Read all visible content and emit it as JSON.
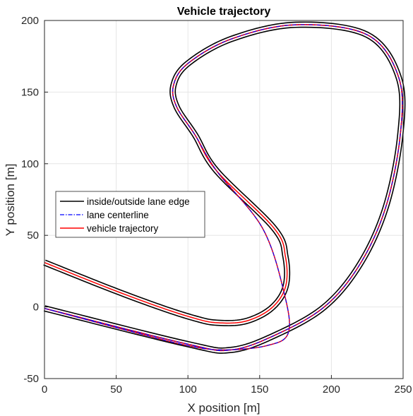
{
  "chart_data": {
    "type": "line",
    "title": "Vehicle trajectory",
    "xlabel": "X position [m]",
    "ylabel": "Y position [m]",
    "xlim": [
      0,
      250
    ],
    "ylim": [
      -50,
      200
    ],
    "xticks": [
      0,
      50,
      100,
      150,
      200,
      250
    ],
    "yticks": [
      -50,
      0,
      50,
      100,
      150,
      200
    ],
    "xtick_labels": [
      "0",
      "50",
      "100",
      "150",
      "200",
      "250"
    ],
    "ytick_labels": [
      "-50",
      "0",
      "50",
      "100",
      "150",
      "200"
    ],
    "grid": true,
    "legend_position": "left-middle",
    "track_width_m": 3.6,
    "series": [
      {
        "name": "inside/outside lane edge",
        "color": "#000000",
        "style": "solid"
      },
      {
        "name": "lane centerline",
        "color": "#0000ff",
        "style": "dashdot",
        "x": [
          0,
          60,
          100,
          125,
          155,
          170,
          167,
          152,
          120,
          105,
          92,
          90,
          100,
          130,
          175,
          225,
          247,
          248,
          238,
          220,
          195,
          160,
          130,
          100,
          0
        ],
        "y": [
          -1,
          -17,
          -27,
          -30,
          -27,
          -18,
          10,
          55,
          95,
          120,
          140,
          155,
          170,
          187,
          197,
          190,
          160,
          120,
          70,
          30,
          0,
          -20,
          -30,
          -26,
          -1
        ]
      },
      {
        "name": "vehicle trajectory",
        "color": "#ff0000",
        "style": "solid",
        "x": [
          0,
          60,
          100,
          125,
          155,
          170,
          167,
          152,
          120,
          105,
          92,
          90,
          100,
          130,
          175,
          225,
          247,
          248,
          238,
          220,
          195,
          160,
          130,
          100,
          0
        ],
        "y": [
          -1,
          -17,
          -27,
          -30,
          -27,
          -18,
          10,
          55,
          95,
          120,
          140,
          155,
          170,
          187,
          197,
          190,
          160,
          120,
          70,
          30,
          0,
          -20,
          -30,
          -26,
          -1
        ]
      }
    ],
    "track_path": {
      "x": [
        0,
        45,
        80,
        105,
        120,
        140,
        158,
        168,
        168,
        160,
        120,
        105,
        92,
        90,
        100,
        130,
        175,
        225,
        247,
        248,
        238,
        220,
        195,
        160,
        130,
        100,
        0
      ],
      "y": [
        31,
        13,
        0,
        -8,
        -11,
        -10,
        -1,
        14,
        35,
        55,
        95,
        120,
        140,
        155,
        170,
        187,
        197,
        190,
        160,
        120,
        70,
        30,
        0,
        -20,
        -30,
        -26,
        -1
      ]
    }
  }
}
